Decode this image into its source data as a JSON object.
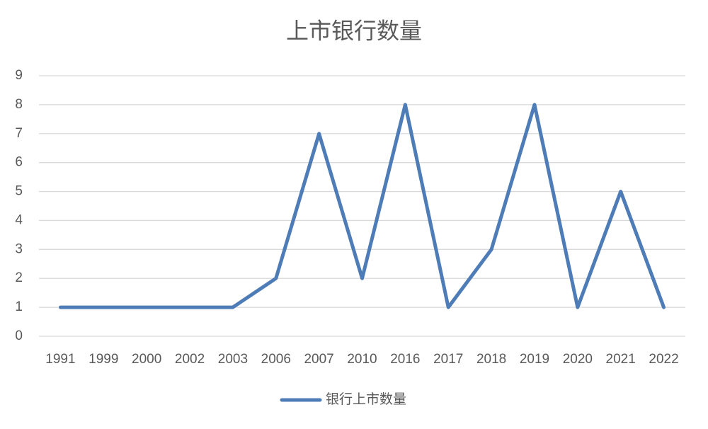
{
  "chart_data": {
    "type": "line",
    "title": "上市银行数量",
    "categories": [
      "1991",
      "1999",
      "2000",
      "2002",
      "2003",
      "2006",
      "2007",
      "2010",
      "2016",
      "2017",
      "2018",
      "2019",
      "2020",
      "2021",
      "2022"
    ],
    "series": [
      {
        "name": "银行上市数量",
        "color": "#4e7cb7",
        "values": [
          1,
          1,
          1,
          1,
          1,
          2,
          7,
          2,
          8,
          1,
          3,
          8,
          1,
          5,
          1
        ]
      }
    ],
    "ylim": [
      0,
      9
    ],
    "yticks": [
      0,
      1,
      2,
      3,
      4,
      5,
      6,
      7,
      8,
      9
    ],
    "grid": true,
    "legend": "bottom"
  }
}
